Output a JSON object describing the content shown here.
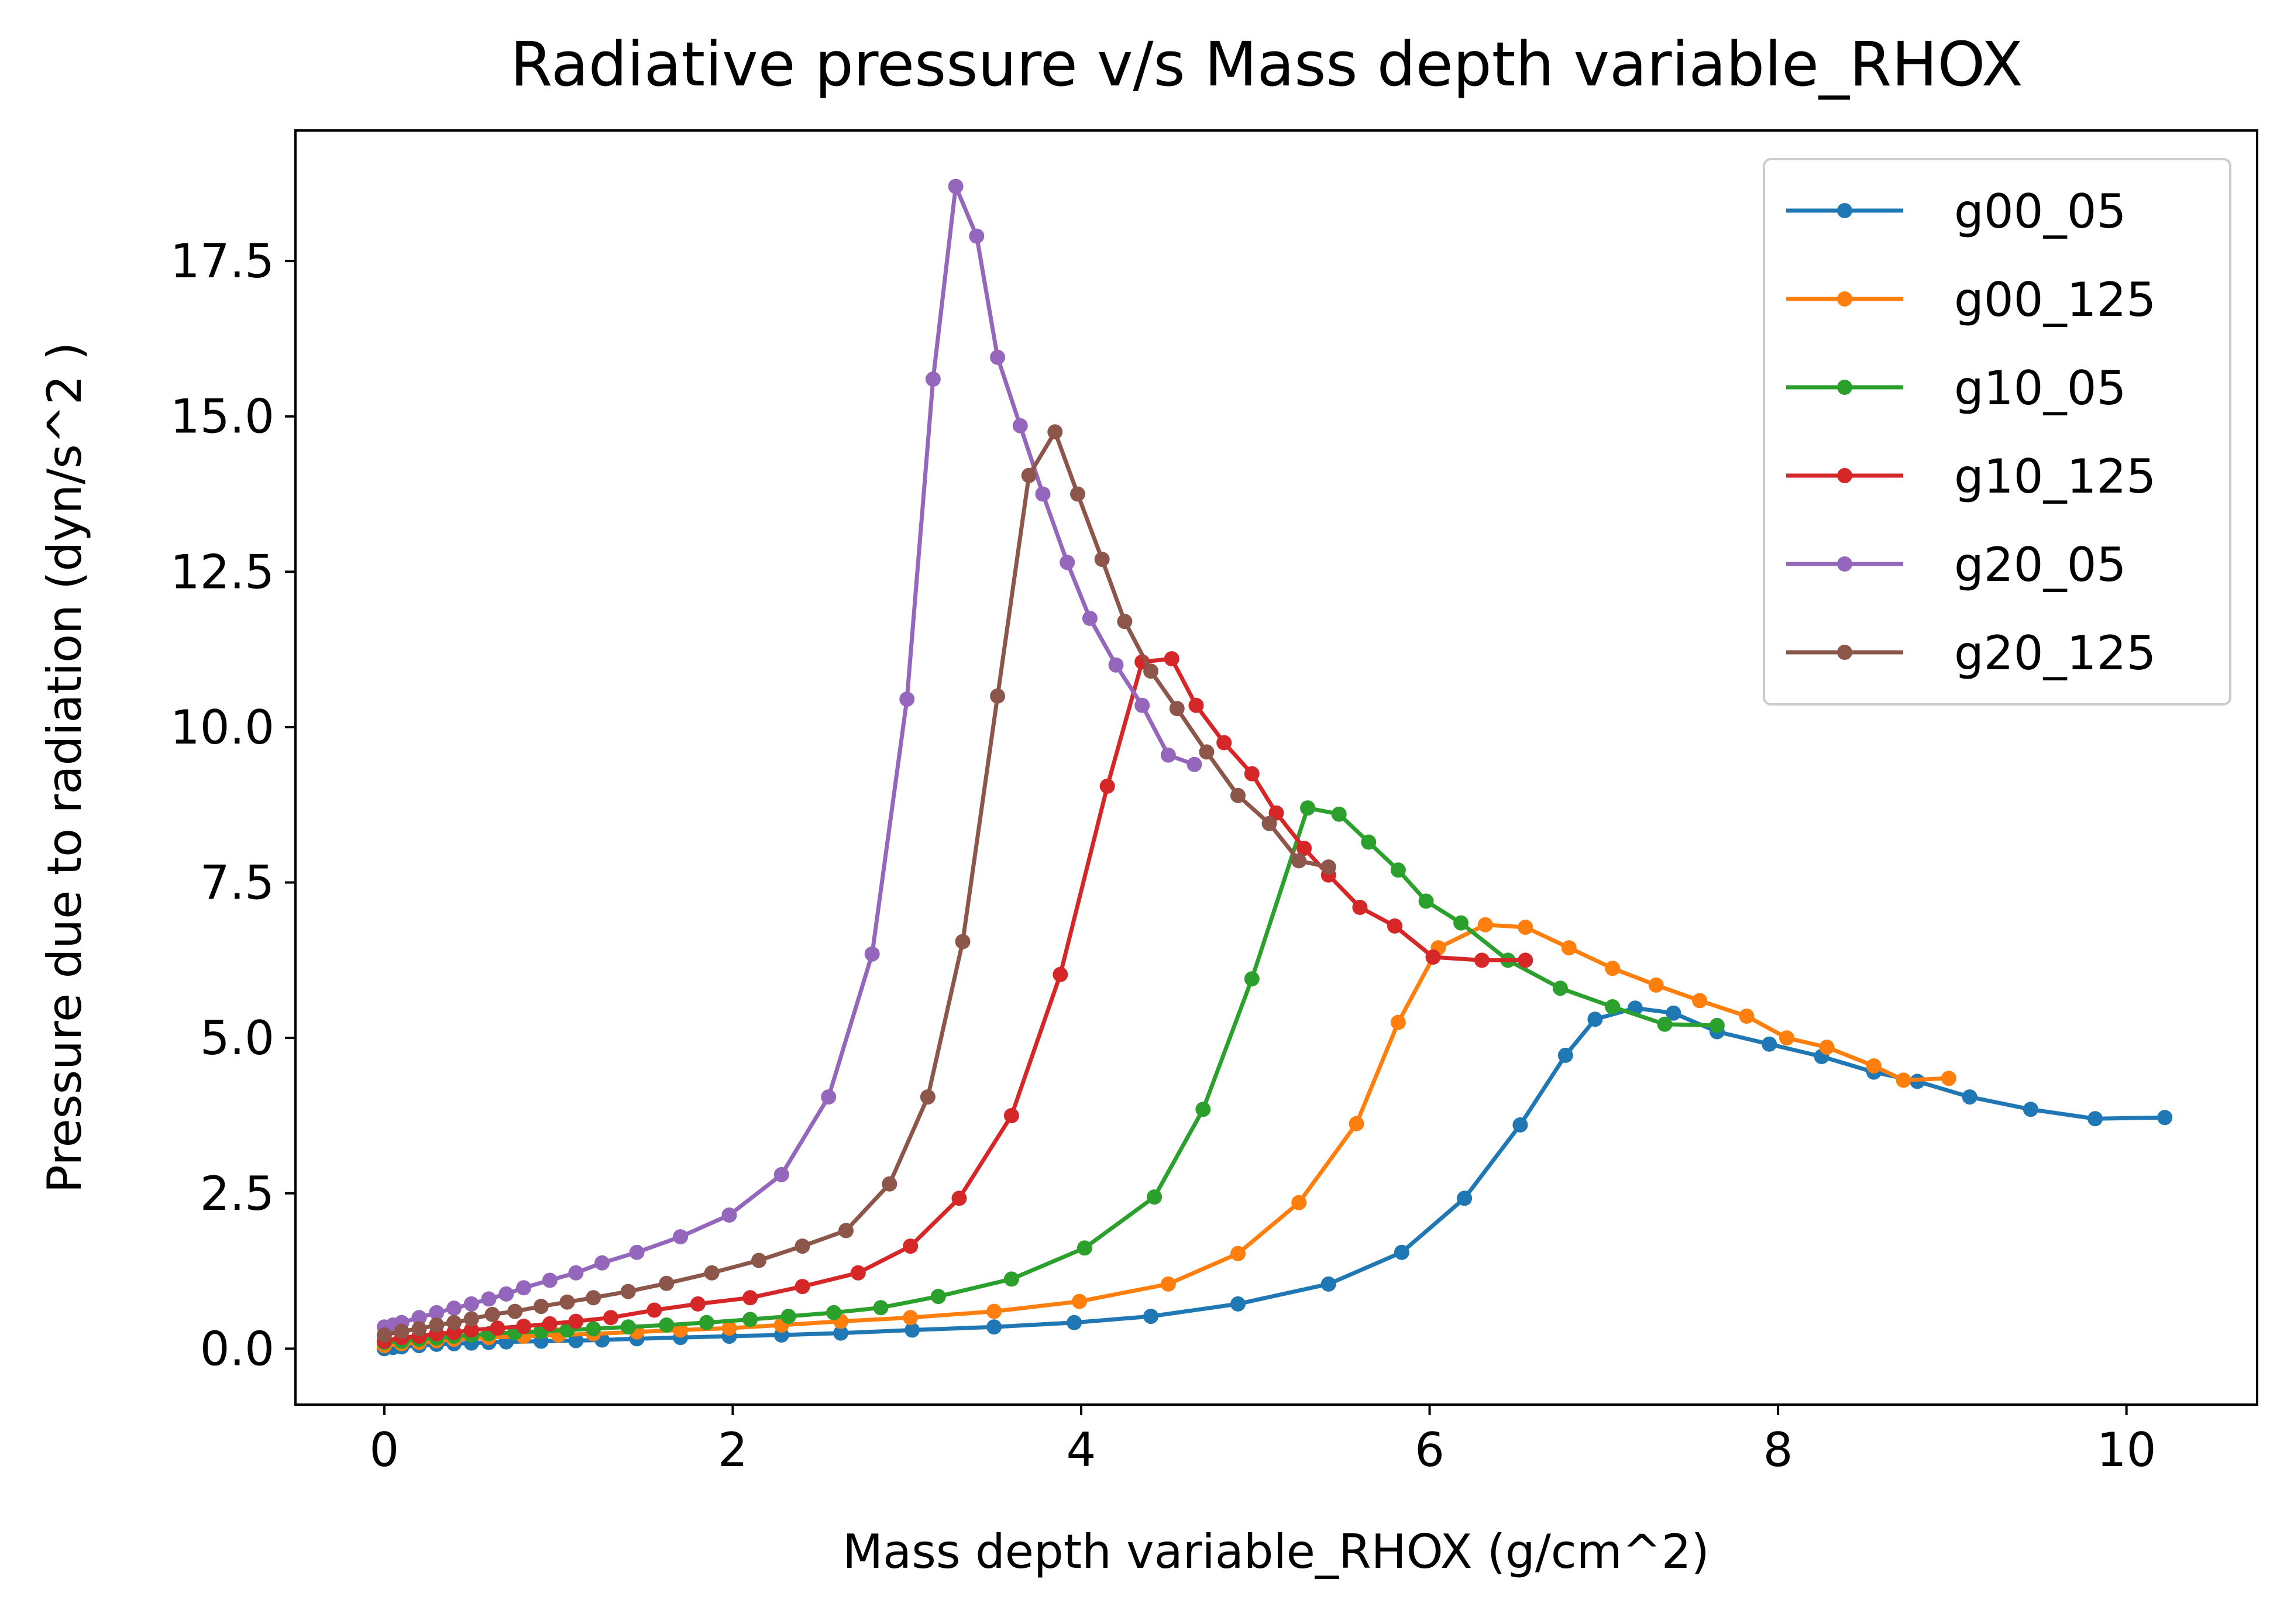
{
  "chart_data": {
    "type": "line",
    "title": "Radiative pressure v/s Mass depth variable_RHOX",
    "xlabel": "Mass depth variable_RHOX (g/cm^2)",
    "ylabel": "Pressure due to radiation (dyn/s^2 )",
    "xlim": [
      -0.51,
      10.75
    ],
    "ylim": [
      -0.9,
      19.6
    ],
    "xticks": [
      0,
      2,
      4,
      6,
      8,
      10
    ],
    "xtick_labels": [
      "0",
      "2",
      "4",
      "6",
      "8",
      "10"
    ],
    "yticks": [
      0,
      2.5,
      5,
      7.5,
      10,
      12.5,
      15,
      17.5
    ],
    "ytick_labels": [
      "0.0",
      "2.5",
      "5.0",
      "7.5",
      "10.0",
      "12.5",
      "15.0",
      "17.5"
    ],
    "grid": false,
    "legend_position": "top-right",
    "marker": "circle",
    "series": [
      {
        "name": "g00_05",
        "color": "#1f77b4",
        "x": [
          0.0,
          0.05,
          0.1,
          0.2,
          0.3,
          0.4,
          0.5,
          0.6,
          0.7,
          0.9,
          1.1,
          1.25,
          1.45,
          1.7,
          1.98,
          2.28,
          2.62,
          3.03,
          3.5,
          3.96,
          4.4,
          4.9,
          5.42,
          5.84,
          6.2,
          6.52,
          6.78,
          6.95,
          7.18,
          7.4,
          7.65,
          7.95,
          8.25,
          8.55,
          8.8,
          9.1,
          9.45,
          9.82,
          10.22
        ],
        "y": [
          0.0,
          0.02,
          0.03,
          0.05,
          0.07,
          0.08,
          0.09,
          0.1,
          0.11,
          0.12,
          0.13,
          0.14,
          0.16,
          0.18,
          0.2,
          0.22,
          0.25,
          0.3,
          0.35,
          0.42,
          0.52,
          0.72,
          1.04,
          1.55,
          2.42,
          3.6,
          4.72,
          5.3,
          5.48,
          5.4,
          5.1,
          4.9,
          4.7,
          4.45,
          4.3,
          4.05,
          3.85,
          3.7,
          3.72
        ]
      },
      {
        "name": "g00_125",
        "color": "#ff7f0e",
        "x": [
          0.0,
          0.1,
          0.2,
          0.3,
          0.4,
          0.6,
          0.8,
          1.0,
          1.2,
          1.45,
          1.7,
          1.98,
          2.28,
          2.62,
          3.02,
          3.5,
          3.99,
          4.5,
          4.9,
          5.25,
          5.58,
          5.82,
          6.05,
          6.32,
          6.55,
          6.8,
          7.05,
          7.3,
          7.55,
          7.82,
          8.05,
          8.28,
          8.55,
          8.72,
          8.98
        ],
        "y": [
          0.05,
          0.08,
          0.1,
          0.13,
          0.15,
          0.18,
          0.2,
          0.22,
          0.24,
          0.27,
          0.3,
          0.33,
          0.38,
          0.44,
          0.5,
          0.6,
          0.76,
          1.04,
          1.53,
          2.35,
          3.62,
          5.25,
          6.45,
          6.82,
          6.78,
          6.45,
          6.12,
          5.85,
          5.6,
          5.35,
          5.0,
          4.85,
          4.55,
          4.32,
          4.35
        ]
      },
      {
        "name": "g10_05",
        "color": "#2ca02c",
        "x": [
          0.0,
          0.1,
          0.2,
          0.3,
          0.4,
          0.5,
          0.6,
          0.75,
          0.9,
          1.05,
          1.2,
          1.4,
          1.62,
          1.85,
          2.1,
          2.32,
          2.58,
          2.85,
          3.18,
          3.6,
          4.02,
          4.42,
          4.7,
          4.98,
          5.3,
          5.48,
          5.65,
          5.82,
          5.98,
          6.18,
          6.45,
          6.75,
          7.05,
          7.35,
          7.65
        ],
        "y": [
          0.1,
          0.12,
          0.15,
          0.17,
          0.2,
          0.22,
          0.24,
          0.26,
          0.28,
          0.3,
          0.32,
          0.35,
          0.38,
          0.42,
          0.47,
          0.52,
          0.58,
          0.66,
          0.84,
          1.12,
          1.62,
          2.44,
          3.85,
          5.95,
          8.7,
          8.6,
          8.15,
          7.7,
          7.2,
          6.85,
          6.25,
          5.8,
          5.5,
          5.22,
          5.2
        ]
      },
      {
        "name": "g10_125",
        "color": "#d62728",
        "x": [
          0.0,
          0.1,
          0.2,
          0.3,
          0.4,
          0.5,
          0.65,
          0.8,
          0.95,
          1.1,
          1.3,
          1.55,
          1.8,
          2.1,
          2.4,
          2.72,
          3.02,
          3.3,
          3.6,
          3.88,
          4.15,
          4.35,
          4.52,
          4.66,
          4.82,
          4.98,
          5.12,
          5.28,
          5.42,
          5.6,
          5.8,
          6.02,
          6.3,
          6.55
        ],
        "y": [
          0.12,
          0.18,
          0.2,
          0.24,
          0.26,
          0.3,
          0.33,
          0.36,
          0.4,
          0.44,
          0.5,
          0.62,
          0.72,
          0.82,
          1.0,
          1.22,
          1.65,
          2.42,
          3.75,
          6.02,
          9.05,
          11.05,
          11.1,
          10.35,
          9.75,
          9.25,
          8.62,
          8.05,
          7.62,
          7.1,
          6.8,
          6.3,
          6.25,
          6.25
        ]
      },
      {
        "name": "g20_05",
        "color": "#9467bd",
        "x": [
          0.0,
          0.05,
          0.1,
          0.2,
          0.3,
          0.4,
          0.5,
          0.6,
          0.7,
          0.8,
          0.95,
          1.1,
          1.25,
          1.45,
          1.7,
          1.98,
          2.28,
          2.55,
          2.8,
          3.0,
          3.15,
          3.28,
          3.4,
          3.52,
          3.65,
          3.78,
          3.92,
          4.05,
          4.2,
          4.35,
          4.5,
          4.65
        ],
        "y": [
          0.35,
          0.38,
          0.42,
          0.5,
          0.58,
          0.65,
          0.72,
          0.8,
          0.88,
          0.98,
          1.1,
          1.22,
          1.38,
          1.55,
          1.8,
          2.15,
          2.8,
          4.05,
          6.35,
          10.45,
          15.6,
          18.7,
          17.9,
          15.95,
          14.85,
          13.75,
          12.65,
          11.75,
          11.0,
          10.35,
          9.55,
          9.4
        ]
      },
      {
        "name": "g20_125",
        "color": "#8c564b",
        "x": [
          0.0,
          0.1,
          0.2,
          0.3,
          0.4,
          0.5,
          0.62,
          0.75,
          0.9,
          1.05,
          1.2,
          1.4,
          1.62,
          1.88,
          2.15,
          2.4,
          2.65,
          2.9,
          3.12,
          3.32,
          3.52,
          3.7,
          3.85,
          3.98,
          4.12,
          4.25,
          4.4,
          4.55,
          4.72,
          4.9,
          5.08,
          5.25,
          5.42
        ],
        "y": [
          0.22,
          0.28,
          0.32,
          0.38,
          0.42,
          0.48,
          0.55,
          0.6,
          0.68,
          0.75,
          0.82,
          0.92,
          1.05,
          1.22,
          1.42,
          1.65,
          1.9,
          2.65,
          4.05,
          6.55,
          10.5,
          14.05,
          14.75,
          13.75,
          12.7,
          11.7,
          10.9,
          10.3,
          9.6,
          8.9,
          8.45,
          7.85,
          7.75
        ]
      }
    ]
  }
}
